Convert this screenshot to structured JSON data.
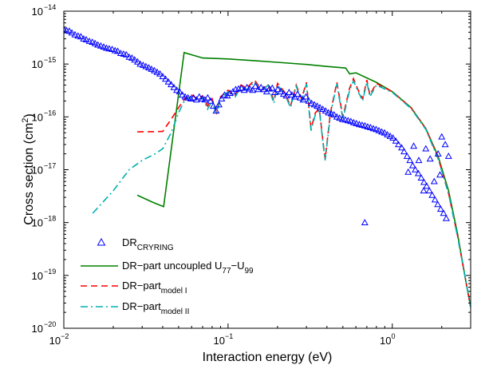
{
  "chart_data": {
    "type": "line",
    "title": "",
    "xlabel": "Interaction energy (eV)",
    "ylabel": "Cross section (cm",
    "ylabel_sup": "2",
    "ylabel_close": ")",
    "xscale": "log",
    "yscale": "log",
    "xlim": [
      0.01,
      3
    ],
    "ylim": [
      1e-20,
      1e-14
    ],
    "grid": false,
    "legend_position": "bottom-left",
    "x_ticks": [
      {
        "value": 0.01,
        "base": "10",
        "exp": "−2"
      },
      {
        "value": 0.1,
        "base": "10",
        "exp": "−1"
      },
      {
        "value": 1,
        "base": "10",
        "exp": "0"
      }
    ],
    "y_ticks": [
      {
        "value": 1e-20,
        "base": "10",
        "exp": "−20"
      },
      {
        "value": 1e-19,
        "base": "10",
        "exp": "−19"
      },
      {
        "value": 1e-18,
        "base": "10",
        "exp": "−18"
      },
      {
        "value": 1e-17,
        "base": "10",
        "exp": "−17"
      },
      {
        "value": 1e-16,
        "base": "10",
        "exp": "−16"
      },
      {
        "value": 1e-15,
        "base": "10",
        "exp": "−15"
      },
      {
        "value": 1e-14,
        "base": "10",
        "exp": "−14"
      }
    ],
    "series": [
      {
        "name": "DR",
        "name_sub": "CRYRING",
        "kind": "scatter",
        "marker": "triangle",
        "color": "#0000ff",
        "points": [
          [
            0.01,
            4.5e-15
          ],
          [
            0.0104,
            4.3e-15
          ],
          [
            0.0108,
            4.2e-15
          ],
          [
            0.0112,
            3.9e-15
          ],
          [
            0.0117,
            3.6e-15
          ],
          [
            0.0122,
            3.4e-15
          ],
          [
            0.0127,
            3.3e-15
          ],
          [
            0.0132,
            3e-15
          ],
          [
            0.0137,
            2.9e-15
          ],
          [
            0.0143,
            2.7e-15
          ],
          [
            0.0149,
            2.6e-15
          ],
          [
            0.0155,
            2.45e-15
          ],
          [
            0.0161,
            2.3e-15
          ],
          [
            0.0168,
            2.2e-15
          ],
          [
            0.0175,
            2.1e-15
          ],
          [
            0.0182,
            2e-15
          ],
          [
            0.0189,
            1.95e-15
          ],
          [
            0.0197,
            1.9e-15
          ],
          [
            0.0205,
            1.8e-15
          ],
          [
            0.0213,
            1.75e-15
          ],
          [
            0.0222,
            1.6e-15
          ],
          [
            0.0231,
            1.55e-15
          ],
          [
            0.024,
            1.5e-15
          ],
          [
            0.025,
            1.35e-15
          ],
          [
            0.026,
            1.3e-15
          ],
          [
            0.027,
            1.2e-15
          ],
          [
            0.0281,
            1.1e-15
          ],
          [
            0.0292,
            1e-15
          ],
          [
            0.0304,
            9.5e-16
          ],
          [
            0.0316,
            9e-16
          ],
          [
            0.0329,
            8.5e-16
          ],
          [
            0.0342,
            8e-16
          ],
          [
            0.0356,
            7.5e-16
          ],
          [
            0.037,
            7e-16
          ],
          [
            0.0385,
            6.5e-16
          ],
          [
            0.04,
            5.8e-16
          ],
          [
            0.0416,
            5.2e-16
          ],
          [
            0.0433,
            4.6e-16
          ],
          [
            0.045,
            4.1e-16
          ],
          [
            0.0468,
            3.6e-16
          ],
          [
            0.0487,
            3.2e-16
          ],
          [
            0.0507,
            3e-16
          ],
          [
            0.0527,
            2.6e-16
          ],
          [
            0.0548,
            2.4e-16
          ],
          [
            0.057,
            2.3e-16
          ],
          [
            0.0593,
            2.2e-16
          ],
          [
            0.0617,
            2.3e-16
          ],
          [
            0.0642,
            2.1e-16
          ],
          [
            0.0668,
            2.4e-16
          ],
          [
            0.0695,
            2.2e-16
          ],
          [
            0.0723,
            2.1e-16
          ],
          [
            0.0752,
            2.3e-16
          ],
          [
            0.0782,
            2e-16
          ],
          [
            0.0813,
            1.6e-16
          ],
          [
            0.0846,
            1.3e-16
          ],
          [
            0.088,
            1.7e-16
          ],
          [
            0.0915,
            2.2e-16
          ],
          [
            0.0952,
            2.6e-16
          ],
          [
            0.099,
            2.5e-16
          ],
          [
            0.103,
            2.8e-16
          ],
          [
            0.1071,
            3e-16
          ],
          [
            0.1114,
            3.3e-16
          ],
          [
            0.1159,
            3.4e-16
          ],
          [
            0.1205,
            3.5e-16
          ],
          [
            0.1254,
            3.2e-16
          ],
          [
            0.1304,
            3.6e-16
          ],
          [
            0.1356,
            3.4e-16
          ],
          [
            0.1411,
            3.2e-16
          ],
          [
            0.1467,
            3.8e-16
          ],
          [
            0.1526,
            3.3e-16
          ],
          [
            0.1588,
            3.6e-16
          ],
          [
            0.1651,
            3.3e-16
          ],
          [
            0.1718,
            3e-16
          ],
          [
            0.1787,
            3.4e-16
          ],
          [
            0.1858,
            3.5e-16
          ],
          [
            0.1933,
            2.9e-16
          ],
          [
            0.201,
            3.3e-16
          ],
          [
            0.2091,
            3e-16
          ],
          [
            0.2175,
            2.7e-16
          ],
          [
            0.2262,
            2.5e-16
          ],
          [
            0.2353,
            2.9e-16
          ],
          [
            0.2448,
            2.6e-16
          ],
          [
            0.2546,
            2.4e-16
          ],
          [
            0.2648,
            2.7e-16
          ],
          [
            0.2754,
            2.3e-16
          ],
          [
            0.2865,
            2.1e-16
          ],
          [
            0.298,
            2.4e-16
          ],
          [
            0.31,
            2e-16
          ],
          [
            0.3224,
            1.8e-16
          ],
          [
            0.3353,
            1.7e-16
          ],
          [
            0.3488,
            1.6e-16
          ],
          [
            0.3628,
            1.5e-16
          ],
          [
            0.3773,
            1.4e-16
          ],
          [
            0.3925,
            1.3e-16
          ],
          [
            0.4082,
            1.2e-16
          ],
          [
            0.4246,
            1.15e-16
          ],
          [
            0.4416,
            1.1e-16
          ],
          [
            0.4594,
            1e-16
          ],
          [
            0.4778,
            9.5e-17
          ],
          [
            0.497,
            9e-17
          ],
          [
            0.5169,
            8.8e-17
          ],
          [
            0.5377,
            8.5e-17
          ],
          [
            0.5593,
            8.2e-17
          ],
          [
            0.5817,
            7.8e-17
          ],
          [
            0.6051,
            7.5e-17
          ],
          [
            0.6294,
            7.2e-17
          ],
          [
            0.6546,
            7e-17
          ],
          [
            0.6809,
            6.8e-17
          ],
          [
            0.7083,
            6.5e-17
          ],
          [
            0.7367,
            6.3e-17
          ],
          [
            0.7663,
            6e-17
          ],
          [
            0.7971,
            5.8e-17
          ],
          [
            0.8291,
            5.5e-17
          ],
          [
            0.8624,
            5.2e-17
          ],
          [
            0.897,
            5e-17
          ],
          [
            0.933,
            4.6e-17
          ],
          [
            0.9705,
            4.3e-17
          ],
          [
            1.0095,
            4e-17
          ],
          [
            1.05,
            3.5e-17
          ],
          [
            1.09,
            3e-17
          ],
          [
            1.14,
            2.6e-17
          ],
          [
            1.18,
            2.2e-17
          ],
          [
            1.23,
            1.8e-17
          ],
          [
            1.28,
            1.5e-17
          ],
          [
            1.33,
            1.2e-17
          ],
          [
            1.38,
            1e-17
          ],
          [
            1.44,
            8.5e-18
          ],
          [
            1.5,
            7e-18
          ],
          [
            1.56,
            5.8e-18
          ],
          [
            1.62,
            4.9e-18
          ],
          [
            1.68,
            4e-18
          ],
          [
            1.75,
            3.3e-18
          ],
          [
            1.82,
            2.7e-18
          ],
          [
            1.89,
            2.2e-18
          ],
          [
            1.97,
            1.8e-18
          ],
          [
            2.05,
            1.5e-18
          ],
          [
            2.13,
            1.2e-18
          ],
          [
            2.0,
            4.2e-17
          ],
          [
            2.1,
            3e-17
          ],
          [
            1.9,
            2e-17
          ],
          [
            1.6,
            2.5e-17
          ],
          [
            1.7,
            1.6e-17
          ],
          [
            1.35,
            2.8e-17
          ],
          [
            1.45,
            1.5e-17
          ],
          [
            1.25,
            9e-18
          ],
          [
            0.68,
            1e-18
          ],
          [
            2.2,
            1.8e-17
          ],
          [
            1.95,
            8e-18
          ],
          [
            1.55,
            4e-18
          ],
          [
            1.8,
            6e-18
          ]
        ]
      },
      {
        "name": "DR−part uncoupled U",
        "name_sub": "77",
        "name_mid": "−U",
        "name_sub2": "99",
        "kind": "line",
        "color": "#008000",
        "dash": "",
        "points": [
          [
            0.028,
            3.3e-18
          ],
          [
            0.035,
            2.4e-18
          ],
          [
            0.0405,
            2e-18
          ],
          [
            0.054,
            1.65e-15
          ],
          [
            0.07,
            1.3e-15
          ],
          [
            0.1,
            1.25e-15
          ],
          [
            0.15,
            1.15e-15
          ],
          [
            0.2,
            1.08e-15
          ],
          [
            0.3,
            9.8e-16
          ],
          [
            0.4,
            9e-16
          ],
          [
            0.52,
            8.4e-16
          ],
          [
            0.55,
            6.5e-16
          ],
          [
            0.6,
            6.8e-16
          ],
          [
            0.8,
            4.5e-16
          ],
          [
            1.0,
            3e-16
          ],
          [
            1.3,
            1.5e-16
          ],
          [
            1.6,
            6e-17
          ],
          [
            1.9,
            1.8e-17
          ],
          [
            2.2,
            4e-18
          ],
          [
            2.5,
            6e-19
          ],
          [
            2.8,
            8e-20
          ],
          [
            3.0,
            2.5e-20
          ]
        ]
      },
      {
        "name": "DR−part",
        "name_sub": "model I",
        "kind": "line",
        "color": "#ff0000",
        "dash": "8,5",
        "points": [
          [
            0.028,
            5.2e-17
          ],
          [
            0.04,
            5.3e-17
          ],
          [
            0.045,
            9e-17
          ],
          [
            0.05,
            1.5e-16
          ],
          [
            0.055,
            2.3e-16
          ],
          [
            0.06,
            2.6e-16
          ],
          [
            0.065,
            2.2e-16
          ],
          [
            0.07,
            2.5e-16
          ],
          [
            0.075,
            1.6e-16
          ],
          [
            0.08,
            2.2e-16
          ],
          [
            0.085,
            1.2e-16
          ],
          [
            0.09,
            2.4e-16
          ],
          [
            0.1,
            3.2e-16
          ],
          [
            0.11,
            2.5e-16
          ],
          [
            0.12,
            4e-16
          ],
          [
            0.13,
            3.5e-16
          ],
          [
            0.145,
            5e-16
          ],
          [
            0.16,
            3.2e-16
          ],
          [
            0.175,
            4.2e-16
          ],
          [
            0.19,
            2e-16
          ],
          [
            0.2,
            4.3e-16
          ],
          [
            0.22,
            3e-16
          ],
          [
            0.24,
            1.6e-16
          ],
          [
            0.26,
            4e-16
          ],
          [
            0.28,
            2.2e-16
          ],
          [
            0.3,
            4.5e-16
          ],
          [
            0.32,
            6e-17
          ],
          [
            0.34,
            1.2e-16
          ],
          [
            0.36,
            1.4e-16
          ],
          [
            0.38,
            3e-17
          ],
          [
            0.39,
            1.6e-17
          ],
          [
            0.42,
            1.2e-16
          ],
          [
            0.46,
            4.5e-16
          ],
          [
            0.5,
            1e-16
          ],
          [
            0.55,
            3.5e-16
          ],
          [
            0.58,
            5.3e-16
          ],
          [
            0.62,
            3.2e-16
          ],
          [
            0.66,
            2.2e-16
          ],
          [
            0.7,
            5e-16
          ],
          [
            0.73,
            2.6e-16
          ],
          [
            0.8,
            4.3e-16
          ],
          [
            1.0,
            3e-16
          ],
          [
            1.3,
            1.5e-16
          ],
          [
            1.6,
            6e-17
          ],
          [
            1.9,
            1.7e-17
          ],
          [
            2.2,
            3.6e-18
          ],
          [
            2.5,
            5.5e-19
          ],
          [
            2.8,
            8e-20
          ],
          [
            3.0,
            2.5e-20
          ]
        ]
      },
      {
        "name": "DR−part",
        "name_sub": "model II",
        "kind": "line",
        "color": "#00b0b0",
        "dash": "9,4,2,4",
        "points": [
          [
            0.015,
            1.5e-18
          ],
          [
            0.02,
            4e-18
          ],
          [
            0.025,
            1e-17
          ],
          [
            0.03,
            1.5e-17
          ],
          [
            0.036,
            2e-17
          ],
          [
            0.04,
            2.5e-17
          ],
          [
            0.045,
            5e-17
          ],
          [
            0.05,
            1.2e-16
          ],
          [
            0.055,
            2.2e-16
          ],
          [
            0.06,
            2.4e-16
          ],
          [
            0.065,
            2.1e-16
          ],
          [
            0.07,
            2.3e-16
          ],
          [
            0.075,
            1.4e-16
          ],
          [
            0.08,
            2e-16
          ],
          [
            0.085,
            1.1e-16
          ],
          [
            0.09,
            2.2e-16
          ],
          [
            0.1,
            3e-16
          ],
          [
            0.11,
            2.3e-16
          ],
          [
            0.12,
            3.8e-16
          ],
          [
            0.13,
            3.3e-16
          ],
          [
            0.145,
            4.6e-16
          ],
          [
            0.16,
            3e-16
          ],
          [
            0.175,
            4e-16
          ],
          [
            0.19,
            1.8e-16
          ],
          [
            0.2,
            4e-16
          ],
          [
            0.22,
            2.8e-16
          ],
          [
            0.24,
            1.5e-16
          ],
          [
            0.26,
            3.8e-16
          ],
          [
            0.28,
            2e-16
          ],
          [
            0.3,
            4.2e-16
          ],
          [
            0.32,
            5.5e-17
          ],
          [
            0.34,
            1.1e-16
          ],
          [
            0.36,
            1.3e-16
          ],
          [
            0.38,
            2.8e-17
          ],
          [
            0.39,
            1.5e-17
          ],
          [
            0.42,
            1.1e-16
          ],
          [
            0.46,
            4.2e-16
          ],
          [
            0.5,
            9e-17
          ],
          [
            0.55,
            3.2e-16
          ],
          [
            0.58,
            4.8e-16
          ],
          [
            0.62,
            3e-16
          ],
          [
            0.66,
            2e-16
          ],
          [
            0.7,
            4.6e-16
          ],
          [
            0.73,
            2.4e-16
          ],
          [
            0.8,
            4e-16
          ],
          [
            1.0,
            2.9e-16
          ],
          [
            1.3,
            1.45e-16
          ],
          [
            1.6,
            5.8e-17
          ],
          [
            1.9,
            1.6e-17
          ],
          [
            2.2,
            3.5e-18
          ],
          [
            2.5,
            5.3e-19
          ],
          [
            2.8,
            8e-20
          ],
          [
            3.0,
            2.5e-20
          ]
        ]
      }
    ]
  }
}
